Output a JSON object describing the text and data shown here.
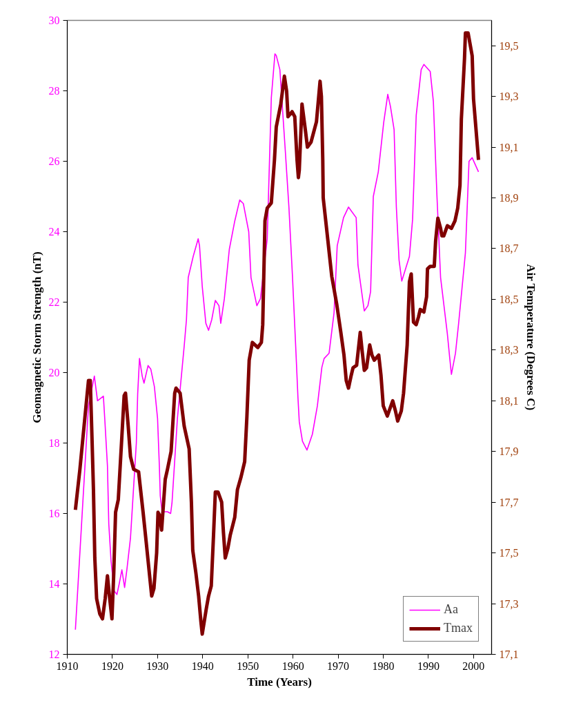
{
  "chart_data": {
    "type": "line",
    "xlabel": "Time (Years)",
    "ylabel": "Geomagnetic Storm Strength (nT)",
    "y2label": "Air Temperature (Degrees C)",
    "xlim": [
      1910,
      2004
    ],
    "xticks": [
      1910,
      1920,
      1930,
      1940,
      1950,
      1960,
      1970,
      1980,
      1990,
      2000
    ],
    "ylim": [
      12,
      30
    ],
    "yticks": [
      12,
      14,
      16,
      18,
      20,
      22,
      24,
      26,
      28,
      30
    ],
    "y2lim": [
      17.1,
      19.6
    ],
    "y2ticks": [
      {
        "value": 17.1,
        "label": "17,1"
      },
      {
        "value": 17.3,
        "label": "17,3"
      },
      {
        "value": 17.5,
        "label": "17,5"
      },
      {
        "value": 17.7,
        "label": "17,7"
      },
      {
        "value": 17.9,
        "label": "17,9"
      },
      {
        "value": 18.1,
        "label": "18,1"
      },
      {
        "value": 18.3,
        "label": "18,3"
      },
      {
        "value": 18.5,
        "label": "18,5"
      },
      {
        "value": 18.7,
        "label": "18,7"
      },
      {
        "value": 18.9,
        "label": "18,9"
      },
      {
        "value": 19.1,
        "label": "19,1"
      },
      {
        "value": 19.3,
        "label": "19,3"
      },
      {
        "value": 19.5,
        "label": "19,5"
      }
    ],
    "grid": false,
    "legend": "bottom right",
    "marker": "none",
    "line_style": "solid",
    "series": [
      {
        "name": "Aa",
        "color": "#ff00ff",
        "axis": "y",
        "x": [
          1911.8,
          1914.7,
          1916,
          1916.7,
          1918,
          1918.3,
          1918.9,
          1919.2,
          1919.7,
          1920.4,
          1921,
          1921.5,
          1922.1,
          1922.7,
          1923.2,
          1924,
          1925.3,
          1925.6,
          1926,
          1926.6,
          1927,
          1927.9,
          1928.5,
          1929.3,
          1930,
          1930.4,
          1930.6,
          1931,
          1932.2,
          1932.9,
          1933.2,
          1934.4,
          1935.9,
          1936.4,
          1936.8,
          1937.9,
          1939,
          1939.3,
          1939.9,
          1940.7,
          1941.3,
          1942,
          1942.8,
          1943.6,
          1944,
          1944.8,
          1945.9,
          1947.1,
          1948.2,
          1949,
          1950.2,
          1950.7,
          1952,
          1952.8,
          1954.3,
          1955.2,
          1956,
          1956.3,
          1957.1,
          1958.3,
          1959.1,
          1959.9,
          1960.6,
          1961.1,
          1961.4,
          1962.1,
          1963.1,
          1964.3,
          1965.4,
          1966.4,
          1966.9,
          1968,
          1969.1,
          1969.8,
          1971.2,
          1972.3,
          1974,
          1974.4,
          1975.8,
          1976.6,
          1977.2,
          1977.8,
          1978.9,
          1980.1,
          1981,
          1981.6,
          1982.4,
          1982.9,
          1983.5,
          1984.1,
          1985.8,
          1986.5,
          1987.3,
          1988.4,
          1989,
          1990.4,
          1991.1,
          1991.9,
          1992.7,
          1994.2,
          1994.7,
          1995.1,
          1996,
          1996.7,
          1998.2,
          1999,
          1999.7,
          2001.1
        ],
        "values": [
          12.7,
          19.06,
          19.9,
          19.2,
          19.33,
          18.7,
          17.35,
          15.7,
          14.65,
          13.8,
          13.7,
          14.0,
          14.4,
          13.9,
          14.4,
          15.3,
          18.0,
          19.4,
          20.4,
          19.9,
          19.7,
          20.2,
          20.1,
          19.6,
          18.7,
          17.35,
          16.5,
          16.05,
          16.05,
          16.0,
          16.3,
          18.7,
          20.75,
          21.5,
          22.7,
          23.3,
          23.8,
          23.6,
          22.45,
          21.4,
          21.2,
          21.5,
          22.05,
          21.9,
          21.4,
          22.1,
          23.5,
          24.3,
          24.9,
          24.8,
          24.0,
          22.7,
          21.9,
          22.1,
          23.8,
          27.8,
          29.05,
          29.0,
          28.6,
          26.3,
          24.7,
          22.7,
          20.75,
          19.3,
          18.6,
          18.05,
          17.8,
          18.25,
          19.05,
          20.15,
          20.4,
          20.55,
          21.7,
          23.6,
          24.4,
          24.7,
          24.4,
          23.05,
          21.75,
          21.9,
          22.3,
          25.0,
          25.7,
          27.1,
          27.9,
          27.55,
          26.9,
          24.7,
          23.2,
          22.6,
          23.3,
          24.35,
          27.3,
          28.6,
          28.75,
          28.55,
          27.7,
          25.0,
          22.7,
          21.1,
          20.45,
          19.95,
          20.55,
          21.4,
          23.4,
          26.0,
          26.1,
          25.7
        ]
      },
      {
        "name": "Tmax",
        "color": "#800000",
        "axis": "y2",
        "x": [
          1911.8,
          1912.8,
          1914.1,
          1914.7,
          1915.1,
          1915.5,
          1915.8,
          1916.1,
          1916.5,
          1917.2,
          1917.8,
          1918.4,
          1918.9,
          1919.4,
          1919.9,
          1920.3,
          1920.7,
          1921.3,
          1922.1,
          1922.6,
          1922.9,
          1923.5,
          1924,
          1924.7,
          1925.8,
          1926.8,
          1927.5,
          1927.9,
          1928.7,
          1929.2,
          1929.8,
          1930.1,
          1930.4,
          1930.9,
          1931.7,
          1932.2,
          1933,
          1933.8,
          1934.1,
          1935,
          1935.9,
          1937,
          1937.5,
          1937.8,
          1938.5,
          1939.1,
          1939.6,
          1939.9,
          1940.8,
          1941.3,
          1941.9,
          1942.4,
          1942.8,
          1943.4,
          1944.2,
          1944.6,
          1945,
          1945.6,
          1946.1,
          1947.1,
          1947.7,
          1948.5,
          1949.3,
          1949.8,
          1950.3,
          1951,
          1952.2,
          1953,
          1953.3,
          1953.8,
          1954.3,
          1955.2,
          1955.9,
          1956.3,
          1957.3,
          1958.1,
          1958.6,
          1958.9,
          1959.8,
          1960.4,
          1960.9,
          1961.2,
          1961.4,
          1962,
          1962.8,
          1963.2,
          1964,
          1965.2,
          1966,
          1966.3,
          1966.6,
          1966.7,
          1967.5,
          1968.6,
          1969.7,
          1970.6,
          1971.3,
          1971.8,
          1972.3,
          1972.9,
          1973.3,
          1974.1,
          1974.9,
          1975.3,
          1975.8,
          1976.3,
          1977,
          1977.5,
          1978,
          1979,
          1979.5,
          1980,
          1980.9,
          1981.3,
          1982.1,
          1982.7,
          1983.2,
          1984,
          1984.5,
          1985.3,
          1985.8,
          1986.2,
          1986.7,
          1987.3,
          1987.8,
          1988.2,
          1989,
          1989.6,
          1989.8,
          1990.4,
          1991.3,
          1991.6,
          1992.1,
          1992.7,
          1993,
          1993.4,
          1994.2,
          1995.1,
          1995.9,
          1996.5,
          1997,
          1997.3,
          1998,
          1998.2,
          1998.8,
          1999.3,
          1999.7,
          2000,
          2001.1
        ],
        "values": [
          17.67,
          17.83,
          18.07,
          18.18,
          18.18,
          17.94,
          17.75,
          17.48,
          17.32,
          17.26,
          17.24,
          17.32,
          17.41,
          17.32,
          17.24,
          17.42,
          17.66,
          17.71,
          17.96,
          18.12,
          18.13,
          18.0,
          17.88,
          17.83,
          17.82,
          17.66,
          17.54,
          17.47,
          17.33,
          17.36,
          17.5,
          17.66,
          17.65,
          17.59,
          17.79,
          17.83,
          17.9,
          18.13,
          18.15,
          18.13,
          18.0,
          17.91,
          17.7,
          17.51,
          17.42,
          17.33,
          17.23,
          17.18,
          17.28,
          17.33,
          17.37,
          17.57,
          17.74,
          17.74,
          17.7,
          17.58,
          17.48,
          17.52,
          17.57,
          17.64,
          17.75,
          17.8,
          17.86,
          18.04,
          18.26,
          18.33,
          18.31,
          18.33,
          18.4,
          18.81,
          18.86,
          18.88,
          19.05,
          19.18,
          19.27,
          19.38,
          19.32,
          19.22,
          19.24,
          19.22,
          19.05,
          18.98,
          19.01,
          19.27,
          19.16,
          19.1,
          19.12,
          19.2,
          19.36,
          19.3,
          19.05,
          18.9,
          18.77,
          18.59,
          18.48,
          18.37,
          18.28,
          18.18,
          18.15,
          18.2,
          18.23,
          18.24,
          18.37,
          18.3,
          18.22,
          18.23,
          18.32,
          18.28,
          18.26,
          18.28,
          18.2,
          18.08,
          18.04,
          18.06,
          18.1,
          18.06,
          18.02,
          18.06,
          18.13,
          18.32,
          18.57,
          18.6,
          18.41,
          18.4,
          18.43,
          18.46,
          18.45,
          18.51,
          18.62,
          18.63,
          18.63,
          18.73,
          18.82,
          18.78,
          18.75,
          18.75,
          18.79,
          18.78,
          18.81,
          18.86,
          18.95,
          19.21,
          19.45,
          19.55,
          19.55,
          19.5,
          19.46,
          19.29,
          19.05
        ]
      }
    ]
  }
}
